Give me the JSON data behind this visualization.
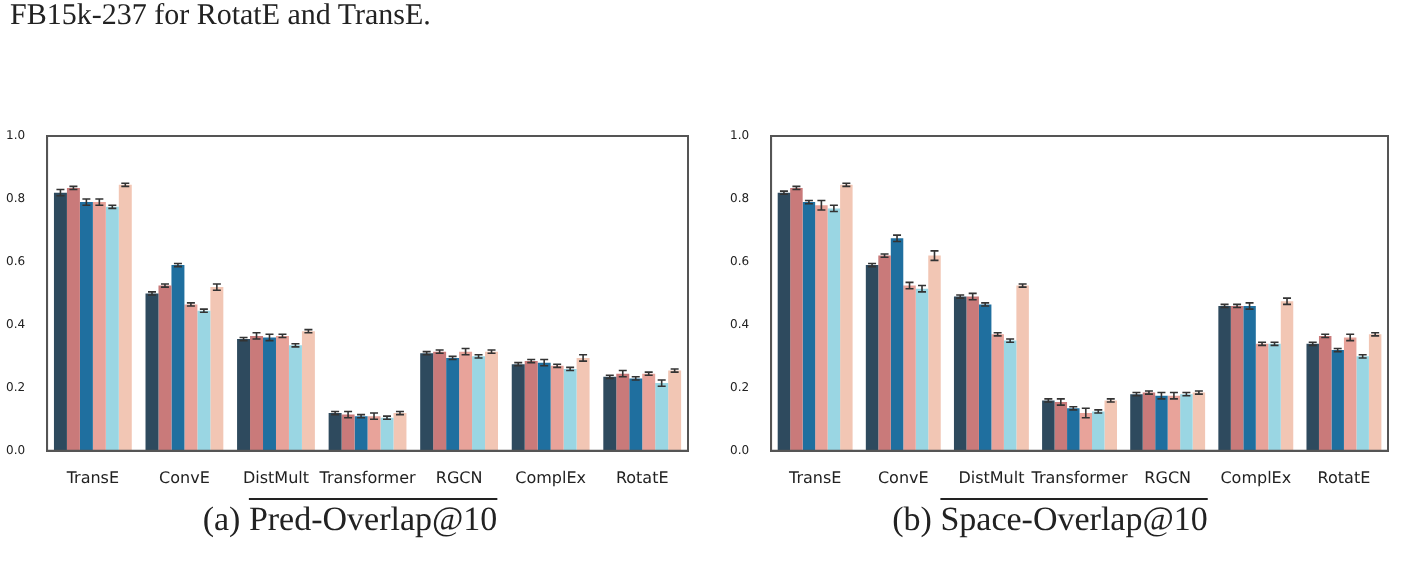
{
  "chart_data": [
    {
      "type": "bar",
      "title": "FB15k-237 for RotatE and TransE.",
      "categories": [
        "TransE",
        "ConvE",
        "DistMult",
        "Transformer",
        "RGCN",
        "ComplEx",
        "RotatE"
      ],
      "series": [
        {
          "color": "#2e4a5e",
          "values": [
            0.82,
            0.5,
            0.355,
            0.12,
            0.31,
            0.275,
            0.235
          ],
          "errors": [
            0.01,
            0.005,
            0.005,
            0.005,
            0.005,
            0.005,
            0.005
          ]
        },
        {
          "color": "#c97a7a",
          "values": [
            0.835,
            0.525,
            0.365,
            0.115,
            0.315,
            0.285,
            0.245
          ],
          "errors": [
            0.005,
            0.005,
            0.01,
            0.01,
            0.005,
            0.005,
            0.01
          ]
        },
        {
          "color": "#1f6f9f",
          "values": [
            0.79,
            0.59,
            0.36,
            0.11,
            0.295,
            0.28,
            0.23
          ],
          "errors": [
            0.01,
            0.005,
            0.01,
            0.005,
            0.005,
            0.01,
            0.005
          ]
        },
        {
          "color": "#e8a39a",
          "values": [
            0.79,
            0.465,
            0.365,
            0.11,
            0.315,
            0.27,
            0.245
          ],
          "errors": [
            0.01,
            0.005,
            0.005,
            0.01,
            0.01,
            0.005,
            0.005
          ]
        },
        {
          "color": "#9ad6e3",
          "values": [
            0.775,
            0.445,
            0.335,
            0.105,
            0.3,
            0.26,
            0.215
          ],
          "errors": [
            0.005,
            0.005,
            0.005,
            0.005,
            0.005,
            0.005,
            0.01
          ]
        },
        {
          "color": "#f2c6b4",
          "values": [
            0.845,
            0.52,
            0.38,
            0.12,
            0.315,
            0.295,
            0.255
          ],
          "errors": [
            0.005,
            0.01,
            0.005,
            0.005,
            0.005,
            0.01,
            0.005
          ]
        }
      ],
      "ylim": [
        0,
        1
      ],
      "yticks": [
        {
          "value": 0,
          "label": "0.0"
        },
        {
          "value": 0.2,
          "label": "0.2"
        },
        {
          "value": 0.4,
          "label": "0.4"
        },
        {
          "value": 0.6,
          "label": "0.6"
        },
        {
          "value": 0.8,
          "label": "0.8"
        },
        {
          "value": 1,
          "label": "1.0"
        }
      ],
      "grid": false,
      "legend": false,
      "annotations": [
        "(a)",
        "Pred-Overlap@10"
      ]
    },
    {
      "type": "bar",
      "categories": [
        "TransE",
        "ConvE",
        "DistMult",
        "Transformer",
        "RGCN",
        "ComplEx",
        "RotatE"
      ],
      "series": [
        {
          "color": "#2e4a5e",
          "values": [
            0.82,
            0.59,
            0.49,
            0.16,
            0.18,
            0.46,
            0.34
          ],
          "errors": [
            0.005,
            0.005,
            0.005,
            0.005,
            0.005,
            0.005,
            0.005
          ]
        },
        {
          "color": "#c97a7a",
          "values": [
            0.835,
            0.62,
            0.49,
            0.155,
            0.185,
            0.46,
            0.365
          ],
          "errors": [
            0.005,
            0.005,
            0.01,
            0.01,
            0.005,
            0.005,
            0.005
          ]
        },
        {
          "color": "#1f6f9f",
          "values": [
            0.79,
            0.675,
            0.465,
            0.135,
            0.175,
            0.46,
            0.32
          ],
          "errors": [
            0.005,
            0.01,
            0.005,
            0.005,
            0.01,
            0.01,
            0.005
          ]
        },
        {
          "color": "#e8a39a",
          "values": [
            0.78,
            0.525,
            0.37,
            0.12,
            0.175,
            0.34,
            0.36
          ],
          "errors": [
            0.015,
            0.01,
            0.005,
            0.015,
            0.01,
            0.005,
            0.01
          ]
        },
        {
          "color": "#9ad6e3",
          "values": [
            0.77,
            0.515,
            0.35,
            0.125,
            0.18,
            0.34,
            0.3
          ],
          "errors": [
            0.01,
            0.01,
            0.005,
            0.005,
            0.005,
            0.005,
            0.005
          ]
        },
        {
          "color": "#f2c6b4",
          "values": [
            0.845,
            0.62,
            0.525,
            0.16,
            0.185,
            0.475,
            0.37
          ],
          "errors": [
            0.005,
            0.015,
            0.005,
            0.005,
            0.005,
            0.01,
            0.005
          ]
        }
      ],
      "ylim": [
        0,
        1
      ],
      "yticks": [
        {
          "value": 0,
          "label": "0.0"
        },
        {
          "value": 0.2,
          "label": "0.2"
        },
        {
          "value": 0.4,
          "label": "0.4"
        },
        {
          "value": 0.6,
          "label": "0.6"
        },
        {
          "value": 0.8,
          "label": "0.8"
        },
        {
          "value": 1,
          "label": "1.0"
        }
      ],
      "grid": false,
      "legend": false,
      "annotations": [
        "(b)",
        "Space-Overlap@10"
      ]
    }
  ]
}
